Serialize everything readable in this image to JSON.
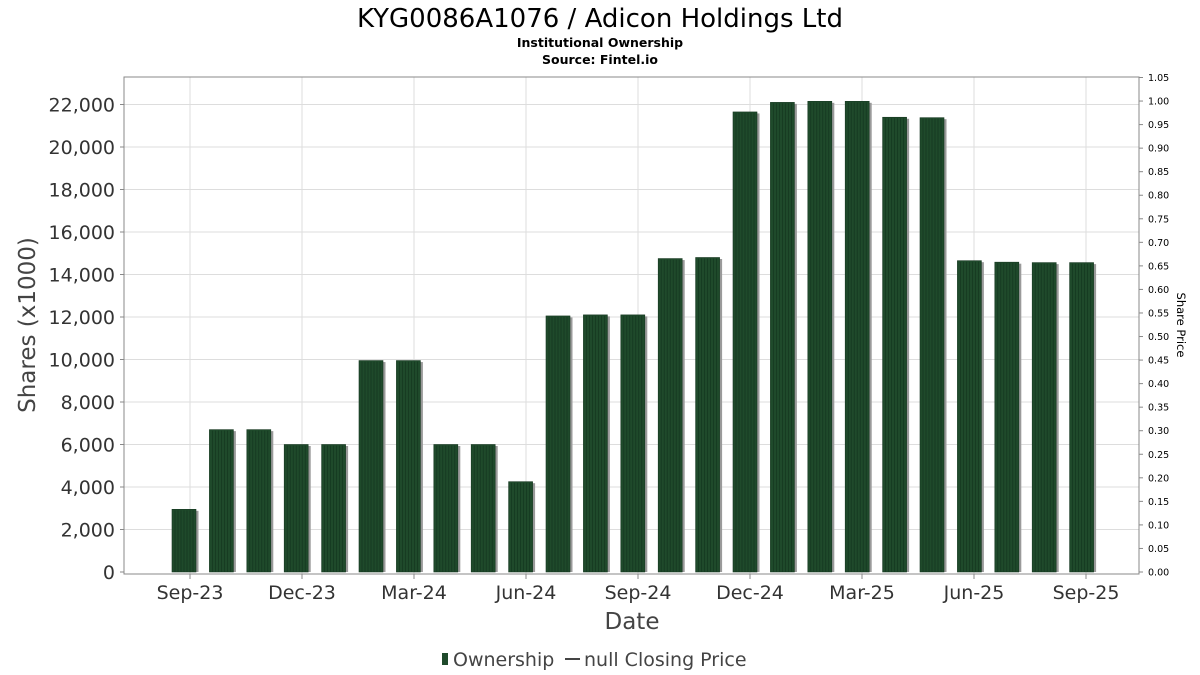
{
  "chart_data": {
    "type": "bar",
    "title": "KYG0086A1076 / Adicon Holdings Ltd",
    "subtitle": "Institutional Ownership",
    "source": "Source: Fintel.io",
    "xlabel": "Date",
    "ylabel": "Shares (x1000)",
    "y2label": "Share Price",
    "ylim": [
      0,
      23000
    ],
    "y2lim": [
      0,
      1.05
    ],
    "yticks": [
      "0",
      "2,000",
      "4,000",
      "6,000",
      "8,000",
      "10,000",
      "12,000",
      "14,000",
      "16,000",
      "18,000",
      "20,000",
      "22,000"
    ],
    "y2ticks": [
      "0.00",
      "0.05",
      "0.10",
      "0.15",
      "0.20",
      "0.25",
      "0.30",
      "0.35",
      "0.40",
      "0.45",
      "0.50",
      "0.55",
      "0.60",
      "0.65",
      "0.70",
      "0.75",
      "0.80",
      "0.85",
      "0.90",
      "0.95",
      "1.00",
      "1.05"
    ],
    "xticks": [
      "Sep-23",
      "Dec-23",
      "Mar-24",
      "Jun-24",
      "Sep-24",
      "Dec-24",
      "Mar-25",
      "Jun-25",
      "Sep-25"
    ],
    "values": [
      2950,
      6700,
      6700,
      6000,
      6000,
      9950,
      9950,
      6000,
      6000,
      4250,
      12050,
      12100,
      12100,
      14750,
      14800,
      21650,
      22100,
      22150,
      22150,
      21400,
      21380,
      14650,
      14580,
      14560,
      14560
    ],
    "bar_color": "#1f4a2b",
    "grid": true,
    "legend": {
      "position": "bottom",
      "items": [
        "Ownership",
        "null Closing Price"
      ]
    }
  }
}
